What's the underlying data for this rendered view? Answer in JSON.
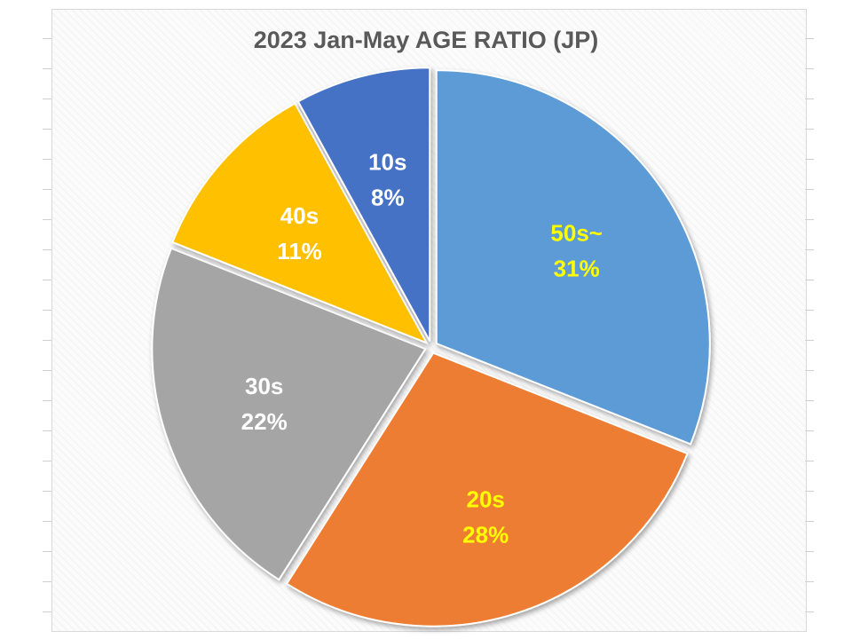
{
  "chart_data": {
    "type": "pie",
    "title": "2023 Jan-May AGE RATIO (JP)",
    "slices": [
      {
        "label": "50s~",
        "value": 31,
        "value_label": "31%",
        "color": "#5B9BD5",
        "label_color": "#FFFF00"
      },
      {
        "label": "20s",
        "value": 28,
        "value_label": "28%",
        "color": "#ED7D31",
        "label_color": "#FFFF00"
      },
      {
        "label": "30s",
        "value": 22,
        "value_label": "22%",
        "color": "#A5A5A5",
        "label_color": "#FFFFFF"
      },
      {
        "label": "40s",
        "value": 11,
        "value_label": "11%",
        "color": "#FFC000",
        "label_color": "#FFFFFF"
      },
      {
        "label": "10s",
        "value": 8,
        "value_label": "8%",
        "color": "#4472C4",
        "label_color": "#FFFFFF"
      }
    ],
    "legend": "none",
    "exploded": true
  }
}
